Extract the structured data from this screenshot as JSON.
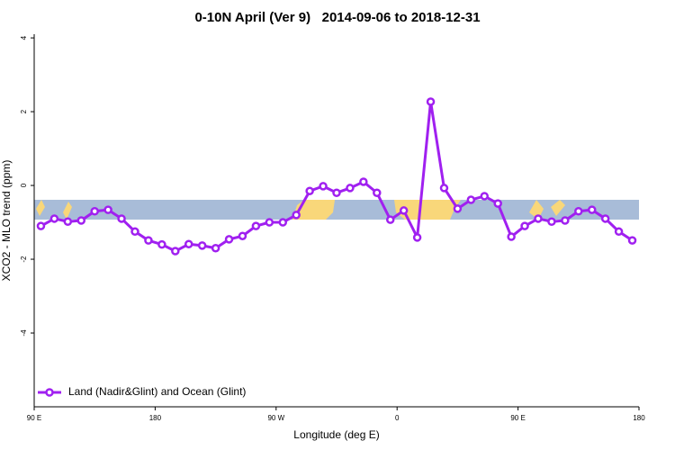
{
  "chart_data": {
    "type": "line",
    "title": "0-10N April (Ver 9)   2014-09-06 to 2018-12-31",
    "x_label": "Longitude (deg E)",
    "y_label": "XCO2 - MLO trend (ppm)",
    "x": [
      95,
      105,
      115,
      125,
      135,
      145,
      155,
      165,
      175,
      185,
      195,
      205,
      215,
      225,
      235,
      245,
      255,
      265,
      275,
      285,
      295,
      305,
      315,
      325,
      335,
      345,
      355,
      365,
      375,
      385,
      395,
      405,
      415,
      425,
      435,
      445,
      455,
      465,
      475,
      485,
      495,
      505,
      515,
      525,
      535
    ],
    "series": [
      {
        "name": "Land (Nadir&Glint) and Ocean (Glint)",
        "color": "#a020f0",
        "values": [
          -1.1,
          -0.9,
          -0.98,
          -0.95,
          -0.7,
          -0.66,
          -0.9,
          -1.25,
          -1.49,
          -1.6,
          -1.78,
          -1.59,
          -1.63,
          -1.7,
          -1.46,
          -1.37,
          -1.1,
          -1.0,
          -1.0,
          -0.8,
          -0.15,
          -0.02,
          -0.2,
          -0.07,
          0.1,
          -0.2,
          -0.93,
          -0.68,
          -1.41,
          2.27,
          -0.07,
          -0.63,
          -0.39,
          -0.29,
          -0.49,
          -1.39,
          -1.1,
          -0.9,
          -0.98,
          -0.95,
          -0.7,
          -0.66,
          -0.9,
          -1.25,
          -1.49
        ]
      }
    ],
    "xlim": [
      90,
      540
    ],
    "xticks": [
      {
        "value": 90,
        "label": "90 E"
      },
      180,
      {
        "value": 270,
        "label": "90 W"
      },
      {
        "value": 360,
        "label": "0"
      },
      {
        "value": 450,
        "label": "90 E"
      },
      {
        "value": 540,
        "label": "180"
      }
    ],
    "ylim": [
      -6,
      4.1
    ],
    "yticks": [
      -4,
      -2,
      0,
      2,
      4
    ],
    "legend": "bottom-left"
  }
}
